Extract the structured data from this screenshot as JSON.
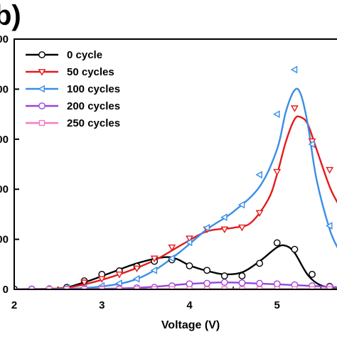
{
  "panel_label": "b)",
  "chart_data": {
    "type": "line",
    "xlabel": "Voltage (V)",
    "ylabel": "",
    "xlim": [
      2,
      5.7
    ],
    "ylim": [
      0,
      5000
    ],
    "x_ticks": [
      2,
      3,
      4,
      5
    ],
    "y_tick_labels": [
      {
        "value": 0,
        "label": "0"
      },
      {
        "value": 1000,
        "label": "000"
      },
      {
        "value": 2000,
        "label": "000"
      },
      {
        "value": 3000,
        "label": "000"
      },
      {
        "value": 4000,
        "label": "000"
      },
      {
        "value": 5000,
        "label": "000"
      }
    ],
    "legend_position": "top-left",
    "series": [
      {
        "name": "0   cycle",
        "color": "#000000",
        "marker": "circle",
        "curve": [
          [
            2.0,
            5
          ],
          [
            2.5,
            15
          ],
          [
            2.8,
            140
          ],
          [
            3.1,
            330
          ],
          [
            3.4,
            520
          ],
          [
            3.7,
            640
          ],
          [
            3.85,
            610
          ],
          [
            4.0,
            480
          ],
          [
            4.2,
            370
          ],
          [
            4.4,
            300
          ],
          [
            4.6,
            340
          ],
          [
            4.8,
            560
          ],
          [
            5.0,
            840
          ],
          [
            5.1,
            870
          ],
          [
            5.2,
            730
          ],
          [
            5.35,
            290
          ],
          [
            5.5,
            80
          ],
          [
            5.7,
            20
          ]
        ],
        "points": [
          [
            2.0,
            5
          ],
          [
            2.2,
            5
          ],
          [
            2.4,
            10
          ],
          [
            2.6,
            40
          ],
          [
            2.8,
            170
          ],
          [
            3.0,
            300
          ],
          [
            3.2,
            370
          ],
          [
            3.4,
            460
          ],
          [
            3.6,
            560
          ],
          [
            3.8,
            590
          ],
          [
            4.0,
            470
          ],
          [
            4.2,
            380
          ],
          [
            4.4,
            270
          ],
          [
            4.6,
            270
          ],
          [
            4.8,
            520
          ],
          [
            5.0,
            930
          ],
          [
            5.2,
            800
          ],
          [
            5.4,
            300
          ],
          [
            5.6,
            60
          ]
        ]
      },
      {
        "name": "50  cycles",
        "color": "#e41a1c",
        "marker": "triangle-down",
        "curve": [
          [
            2.0,
            5
          ],
          [
            2.5,
            20
          ],
          [
            2.8,
            100
          ],
          [
            3.2,
            300
          ],
          [
            3.6,
            580
          ],
          [
            3.9,
            880
          ],
          [
            4.2,
            1160
          ],
          [
            4.5,
            1230
          ],
          [
            4.7,
            1330
          ],
          [
            4.9,
            1800
          ],
          [
            5.0,
            2300
          ],
          [
            5.1,
            2950
          ],
          [
            5.2,
            3400
          ],
          [
            5.27,
            3440
          ],
          [
            5.35,
            3300
          ],
          [
            5.45,
            2800
          ],
          [
            5.6,
            2050
          ],
          [
            5.7,
            1700
          ]
        ],
        "points": [
          [
            2.8,
            140
          ],
          [
            3.0,
            210
          ],
          [
            3.2,
            300
          ],
          [
            3.4,
            420
          ],
          [
            3.6,
            620
          ],
          [
            3.8,
            840
          ],
          [
            4.0,
            1020
          ],
          [
            4.2,
            1200
          ],
          [
            4.4,
            1200
          ],
          [
            4.6,
            1240
          ],
          [
            4.8,
            1530
          ],
          [
            5.0,
            2350
          ],
          [
            5.2,
            3620
          ],
          [
            5.4,
            2960
          ],
          [
            5.6,
            2390
          ]
        ]
      },
      {
        "name": "100 cycles",
        "color": "#3a8ee6",
        "marker": "triangle-left",
        "curve": [
          [
            2.0,
            5
          ],
          [
            2.5,
            10
          ],
          [
            2.9,
            40
          ],
          [
            3.3,
            150
          ],
          [
            3.6,
            380
          ],
          [
            3.9,
            760
          ],
          [
            4.2,
            1200
          ],
          [
            4.5,
            1550
          ],
          [
            4.8,
            2050
          ],
          [
            5.0,
            2800
          ],
          [
            5.1,
            3550
          ],
          [
            5.2,
            3980
          ],
          [
            5.27,
            3900
          ],
          [
            5.35,
            3300
          ],
          [
            5.45,
            2200
          ],
          [
            5.6,
            1200
          ],
          [
            5.7,
            800
          ]
        ],
        "points": [
          [
            2.6,
            30
          ],
          [
            2.8,
            40
          ],
          [
            3.0,
            70
          ],
          [
            3.2,
            120
          ],
          [
            3.4,
            210
          ],
          [
            3.6,
            380
          ],
          [
            3.8,
            620
          ],
          [
            4.0,
            940
          ],
          [
            4.2,
            1230
          ],
          [
            4.4,
            1440
          ],
          [
            4.6,
            1690
          ],
          [
            4.8,
            2290
          ],
          [
            5.0,
            3500
          ],
          [
            5.2,
            4390
          ],
          [
            5.4,
            2900
          ],
          [
            5.6,
            1270
          ]
        ]
      },
      {
        "name": "200 cycles",
        "color": "#9b45d8",
        "marker": "circle",
        "curve": [
          [
            2.0,
            5
          ],
          [
            2.5,
            8
          ],
          [
            3.0,
            12
          ],
          [
            3.5,
            40
          ],
          [
            4.0,
            110
          ],
          [
            4.4,
            140
          ],
          [
            4.8,
            115
          ],
          [
            5.2,
            85
          ],
          [
            5.6,
            50
          ],
          [
            5.7,
            40
          ]
        ],
        "points": [
          [
            2.2,
            5
          ],
          [
            2.4,
            5
          ],
          [
            2.6,
            5
          ],
          [
            2.8,
            10
          ],
          [
            3.0,
            10
          ],
          [
            3.2,
            20
          ],
          [
            3.4,
            30
          ],
          [
            3.6,
            40
          ],
          [
            3.8,
            70
          ],
          [
            4.0,
            110
          ],
          [
            4.2,
            120
          ],
          [
            4.4,
            140
          ],
          [
            4.6,
            130
          ],
          [
            4.8,
            120
          ],
          [
            5.0,
            110
          ],
          [
            5.2,
            90
          ],
          [
            5.4,
            70
          ],
          [
            5.6,
            50
          ]
        ]
      },
      {
        "name": "250 cycles",
        "color": "#f27ec0",
        "marker": "square",
        "curve": [
          [
            2.0,
            2
          ],
          [
            5.7,
            5
          ]
        ],
        "points": [
          [
            2.4,
            3
          ],
          [
            2.6,
            3
          ],
          [
            2.8,
            3
          ],
          [
            3.0,
            3
          ],
          [
            3.2,
            3
          ],
          [
            3.4,
            3
          ],
          [
            3.6,
            3
          ],
          [
            3.8,
            3
          ],
          [
            4.0,
            3
          ],
          [
            4.2,
            3
          ],
          [
            4.4,
            3
          ],
          [
            4.6,
            3
          ],
          [
            4.8,
            3
          ],
          [
            5.0,
            3
          ],
          [
            5.2,
            3
          ],
          [
            5.4,
            3
          ],
          [
            5.6,
            3
          ]
        ]
      }
    ]
  }
}
